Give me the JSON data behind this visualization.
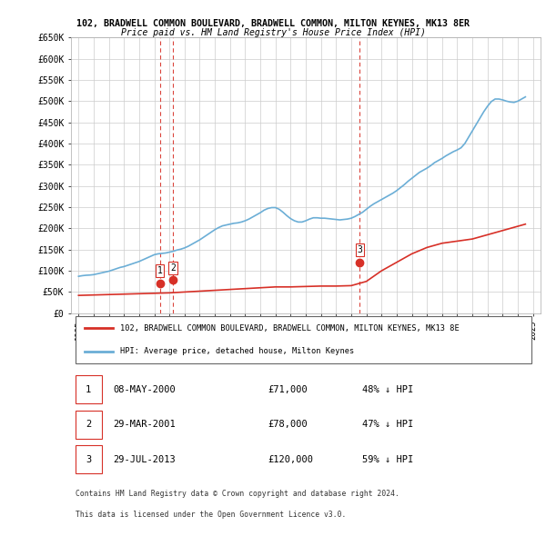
{
  "title_line1": "102, BRADWELL COMMON BOULEVARD, BRADWELL COMMON, MILTON KEYNES, MK13 8ER",
  "title_line2": "Price paid vs. HM Land Registry's House Price Index (HPI)",
  "ylabel": "",
  "xlabel": "",
  "ylim": [
    0,
    650000
  ],
  "yticks": [
    0,
    50000,
    100000,
    150000,
    200000,
    250000,
    300000,
    350000,
    400000,
    450000,
    500000,
    550000,
    600000,
    650000
  ],
  "ytick_labels": [
    "£0",
    "£50K",
    "£100K",
    "£150K",
    "£200K",
    "£250K",
    "£300K",
    "£350K",
    "£400K",
    "£450K",
    "£500K",
    "£550K",
    "£600K",
    "£650K"
  ],
  "xtick_years": [
    1995,
    1996,
    1997,
    1998,
    1999,
    2000,
    2001,
    2002,
    2003,
    2004,
    2005,
    2006,
    2007,
    2008,
    2009,
    2010,
    2011,
    2012,
    2013,
    2014,
    2015,
    2016,
    2017,
    2018,
    2019,
    2020,
    2021,
    2022,
    2023,
    2024,
    2025
  ],
  "hpi_color": "#6baed6",
  "price_color": "#d73027",
  "sale_color": "#d73027",
  "marker_color": "#d73027",
  "vline_color": "#d73027",
  "sales": [
    {
      "label": "1",
      "date_x": 2000.36,
      "price": 71000
    },
    {
      "label": "2",
      "date_x": 2001.24,
      "price": 78000
    },
    {
      "label": "3",
      "date_x": 2013.57,
      "price": 120000
    }
  ],
  "legend_line1": "102, BRADWELL COMMON BOULEVARD, BRADWELL COMMON, MILTON KEYNES, MK13 8E",
  "legend_line2": "HPI: Average price, detached house, Milton Keynes",
  "table_entries": [
    {
      "num": "1",
      "date": "08-MAY-2000",
      "price": "£71,000",
      "hpi": "48% ↓ HPI"
    },
    {
      "num": "2",
      "date": "29-MAR-2001",
      "price": "£78,000",
      "hpi": "47% ↓ HPI"
    },
    {
      "num": "3",
      "date": "29-JUL-2013",
      "price": "£120,000",
      "hpi": "59% ↓ HPI"
    }
  ],
  "footnote1": "Contains HM Land Registry data © Crown copyright and database right 2024.",
  "footnote2": "This data is licensed under the Open Government Licence v3.0.",
  "background_color": "#ffffff",
  "hpi_x": [
    1995.0,
    1995.25,
    1995.5,
    1995.75,
    1996.0,
    1996.25,
    1996.5,
    1996.75,
    1997.0,
    1997.25,
    1997.5,
    1997.75,
    1998.0,
    1998.25,
    1998.5,
    1998.75,
    1999.0,
    1999.25,
    1999.5,
    1999.75,
    2000.0,
    2000.25,
    2000.5,
    2000.75,
    2001.0,
    2001.25,
    2001.5,
    2001.75,
    2002.0,
    2002.25,
    2002.5,
    2002.75,
    2003.0,
    2003.25,
    2003.5,
    2003.75,
    2004.0,
    2004.25,
    2004.5,
    2004.75,
    2005.0,
    2005.25,
    2005.5,
    2005.75,
    2006.0,
    2006.25,
    2006.5,
    2006.75,
    2007.0,
    2007.25,
    2007.5,
    2007.75,
    2008.0,
    2008.25,
    2008.5,
    2008.75,
    2009.0,
    2009.25,
    2009.5,
    2009.75,
    2010.0,
    2010.25,
    2010.5,
    2010.75,
    2011.0,
    2011.25,
    2011.5,
    2011.75,
    2012.0,
    2012.25,
    2012.5,
    2012.75,
    2013.0,
    2013.25,
    2013.5,
    2013.75,
    2014.0,
    2014.25,
    2014.5,
    2014.75,
    2015.0,
    2015.25,
    2015.5,
    2015.75,
    2016.0,
    2016.25,
    2016.5,
    2016.75,
    2017.0,
    2017.25,
    2017.5,
    2017.75,
    2018.0,
    2018.25,
    2018.5,
    2018.75,
    2019.0,
    2019.25,
    2019.5,
    2019.75,
    2020.0,
    2020.25,
    2020.5,
    2020.75,
    2021.0,
    2021.25,
    2021.5,
    2021.75,
    2022.0,
    2022.25,
    2022.5,
    2022.75,
    2023.0,
    2023.25,
    2023.5,
    2023.75,
    2024.0,
    2024.25,
    2024.5
  ],
  "hpi_y": [
    87000,
    88500,
    89500,
    90000,
    91000,
    93000,
    95000,
    97000,
    99000,
    102000,
    105000,
    108000,
    110000,
    113000,
    116000,
    119000,
    122000,
    126000,
    130000,
    134000,
    138000,
    140000,
    141000,
    142000,
    144000,
    146000,
    149000,
    151000,
    154000,
    158000,
    163000,
    168000,
    173000,
    179000,
    185000,
    191000,
    197000,
    202000,
    206000,
    208000,
    210000,
    212000,
    213000,
    215000,
    218000,
    222000,
    227000,
    232000,
    237000,
    243000,
    247000,
    249000,
    249000,
    245000,
    238000,
    230000,
    223000,
    218000,
    215000,
    215000,
    218000,
    222000,
    225000,
    225000,
    224000,
    224000,
    223000,
    222000,
    221000,
    220000,
    221000,
    222000,
    224000,
    228000,
    233000,
    238000,
    245000,
    252000,
    258000,
    263000,
    268000,
    273000,
    278000,
    283000,
    289000,
    296000,
    303000,
    311000,
    318000,
    325000,
    332000,
    337000,
    342000,
    348000,
    355000,
    360000,
    365000,
    371000,
    376000,
    381000,
    385000,
    390000,
    400000,
    415000,
    430000,
    445000,
    460000,
    475000,
    488000,
    499000,
    505000,
    505000,
    503000,
    500000,
    498000,
    497000,
    500000,
    505000,
    510000
  ],
  "price_x": [
    1995.0,
    1996.0,
    1997.0,
    1998.0,
    1999.0,
    2000.0,
    2001.0,
    2002.0,
    2003.0,
    2004.0,
    2005.0,
    2006.0,
    2007.0,
    2008.0,
    2009.0,
    2010.0,
    2011.0,
    2012.0,
    2013.0,
    2014.0,
    2015.0,
    2016.0,
    2017.0,
    2018.0,
    2019.0,
    2020.0,
    2021.0,
    2022.0,
    2023.0,
    2024.0,
    2024.5
  ],
  "price_y": [
    42000,
    43000,
    44000,
    45000,
    46000,
    47000,
    48000,
    50000,
    52000,
    54000,
    56000,
    58000,
    60000,
    62000,
    62000,
    63000,
    64000,
    64000,
    65000,
    75000,
    100000,
    120000,
    140000,
    155000,
    165000,
    170000,
    175000,
    185000,
    195000,
    205000,
    210000
  ]
}
